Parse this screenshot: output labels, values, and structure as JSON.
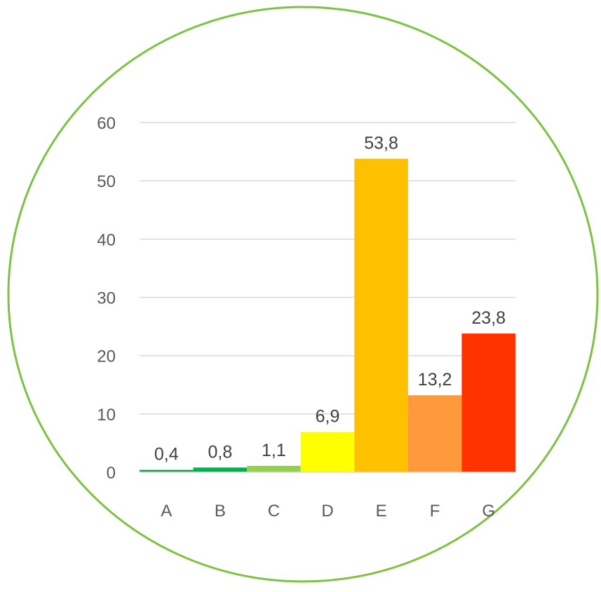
{
  "chart_data": {
    "type": "bar",
    "title": "",
    "xlabel": "",
    "ylabel": "",
    "categories": [
      "A",
      "B",
      "C",
      "D",
      "E",
      "F",
      "G"
    ],
    "values": [
      0.4,
      0.8,
      1.1,
      6.9,
      53.8,
      13.2,
      23.8
    ],
    "data_labels": [
      "0,4",
      "0,8",
      "1,1",
      "6,9",
      "53,8",
      "13,2",
      "23,8"
    ],
    "bar_colors": [
      "#1fa050",
      "#00b050",
      "#92d050",
      "#ffff00",
      "#ffc000",
      "#ff9a3c",
      "#ff3300"
    ],
    "ylim": [
      0,
      60
    ],
    "yticks": [
      0,
      10,
      20,
      30,
      40,
      50,
      60
    ],
    "grid": true,
    "legend": "none"
  },
  "style": {
    "frame_circle_color": "#7dc242",
    "grid_color": "#d9d9d9",
    "axis_color": "#d9d9d9"
  }
}
